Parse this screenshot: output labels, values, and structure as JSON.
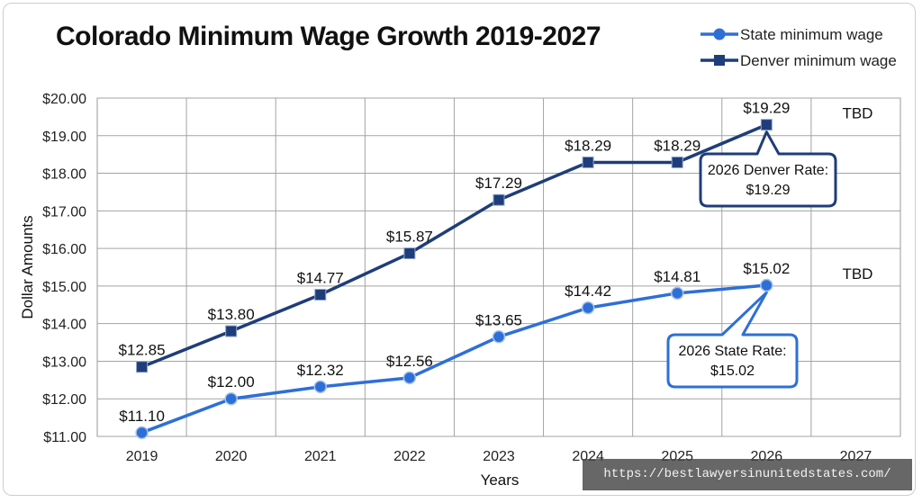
{
  "title": "Colorado Minimum Wage Growth 2019-2027",
  "watermark": "https://bestlawyersinunitedstates.com/",
  "chart_data": {
    "type": "line",
    "title": "Colorado Minimum Wage Growth 2019-2027",
    "xlabel": "Years",
    "ylabel": "Dollar Amounts",
    "categories": [
      "2019",
      "2020",
      "2021",
      "2022",
      "2023",
      "2024",
      "2025",
      "2026",
      "2027"
    ],
    "ylim": [
      11,
      20
    ],
    "yticks": [
      "$11.00",
      "$12.00",
      "$13.00",
      "$14.00",
      "$15.00",
      "$16.00",
      "$17.00",
      "$18.00",
      "$19.00",
      "$20.00"
    ],
    "grid": true,
    "legend_position": "top-right",
    "series": [
      {
        "name": "Denver minimum wage",
        "color": "#1f3d7a",
        "marker": "square",
        "values": [
          12.85,
          13.8,
          14.77,
          15.87,
          17.29,
          18.29,
          18.29,
          19.29,
          null
        ],
        "labels": [
          "$12.85",
          "$13.80",
          "$14.77",
          "$15.87",
          "$17.29",
          "$18.29",
          "$18.29",
          "$19.29",
          "TBD"
        ]
      },
      {
        "name": "State minimum wage",
        "color": "#2e6fd6",
        "marker": "circle",
        "values": [
          11.1,
          12.0,
          12.32,
          12.56,
          13.65,
          14.42,
          14.81,
          15.02,
          null
        ],
        "labels": [
          "$11.10",
          "$12.00",
          "$12.32",
          "$12.56",
          "$13.65",
          "$14.42",
          "$14.81",
          "$15.02",
          "TBD"
        ]
      }
    ],
    "annotations": [
      {
        "series": "Denver minimum wage",
        "category": "2026",
        "text": [
          "2026 Denver Rate:",
          "$19.29"
        ],
        "color": "#1f3d7a"
      },
      {
        "series": "State minimum wage",
        "category": "2026",
        "text": [
          "2026 State Rate:",
          "$15.02"
        ],
        "color": "#2e6fd6"
      }
    ]
  }
}
